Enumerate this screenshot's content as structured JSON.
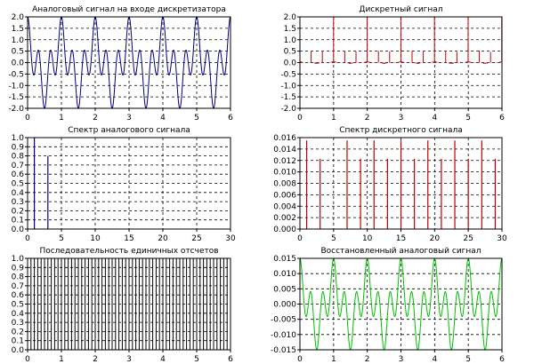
{
  "chart_data": [
    {
      "type": "line",
      "title": "Аналоговый сигнал на входе дискретизатора",
      "color": "#000080",
      "xlim": [
        0,
        6
      ],
      "ylim": [
        -2.0,
        2.0
      ],
      "xticks": [
        "0",
        "1",
        "2",
        "3",
        "4",
        "5",
        "6"
      ],
      "yticks": [
        "-2.0",
        "-1.5",
        "-1.0",
        "-0.5",
        "0.0",
        "0.5",
        "1.0",
        "1.5",
        "2.0"
      ],
      "series": [
        {
          "function": "cos(2*pi*t) + cos(2*pi*3*t)",
          "x_range": [
            0,
            6
          ]
        }
      ],
      "grid": true
    },
    {
      "type": "stem",
      "title": "Дискретный сигнал",
      "color": "#c00000",
      "xlim": [
        0,
        6
      ],
      "ylim": [
        -2.0,
        2.0
      ],
      "xticks": [
        "0",
        "1",
        "2",
        "3",
        "4",
        "5",
        "6"
      ],
      "yticks": [
        "-2.0",
        "-1.5",
        "-1.0",
        "-0.5",
        "0.0",
        "0.5",
        "1.0",
        "1.5",
        "2.0"
      ],
      "stems": {
        "x_start": 0,
        "x_step": 0.0333,
        "x_end": 6,
        "function": "cos(2*pi*t) + cos(2*pi*3*t)",
        "visible_every": 10
      },
      "grid": true
    },
    {
      "type": "bar",
      "title": "Спектр аналогового сигнала",
      "color": "#000080",
      "xlim": [
        0,
        30
      ],
      "ylim": [
        0.0,
        1.0
      ],
      "xticks": [
        "0",
        "5",
        "10",
        "15",
        "20",
        "25",
        "30"
      ],
      "yticks": [
        "0.0",
        "0.1",
        "0.2",
        "0.3",
        "0.4",
        "0.5",
        "0.6",
        "0.7",
        "0.8",
        "0.9",
        "1.0"
      ],
      "x": [
        1,
        3
      ],
      "values": [
        1.0,
        0.8
      ],
      "grid": true
    },
    {
      "type": "bar",
      "title": "Спектр дискретного сигнала",
      "color": "#c00000",
      "xlim": [
        0,
        30
      ],
      "ylim": [
        0.0,
        0.016
      ],
      "xticks": [
        "0",
        "5",
        "10",
        "15",
        "20",
        "25",
        "30"
      ],
      "yticks": [
        "0.000",
        "0.002",
        "0.004",
        "0.006",
        "0.008",
        "0.010",
        "0.012",
        "0.014",
        "0.016"
      ],
      "x": [
        1,
        3,
        7,
        9,
        11,
        13,
        15,
        17,
        19,
        21,
        23,
        25,
        27,
        29
      ],
      "values": [
        0.0155,
        0.0123,
        0.0155,
        0.0123,
        0.0155,
        0.0123,
        0.0155,
        0.0123,
        0.0155,
        0.0123,
        0.0155,
        0.0123,
        0.0155,
        0.0123
      ],
      "grid": true
    },
    {
      "type": "stem",
      "title": "Последовательность  единичных отсчетов",
      "color": "#000000",
      "xlim": [
        0,
        6
      ],
      "ylim": [
        0.0,
        1.0
      ],
      "xticks": [
        "0",
        "1",
        "2",
        "3",
        "4",
        "5",
        "6"
      ],
      "yticks": [
        "0.0",
        "0.1",
        "0.2",
        "0.3",
        "0.4",
        "0.5",
        "0.6",
        "0.7",
        "0.8",
        "0.9",
        "1.0"
      ],
      "stems": {
        "x_start": 0,
        "x_step": 0.1,
        "x_end": 6,
        "value": 1.0
      },
      "grid": true
    },
    {
      "type": "line",
      "title": "Восстановленный аналоговый сигнал",
      "color": "#00c000",
      "xlim": [
        0,
        6
      ],
      "ylim": [
        -0.015,
        0.015
      ],
      "xticks": [
        "0",
        "1",
        "2",
        "3",
        "4",
        "5",
        "6"
      ],
      "yticks": [
        "-0.015",
        "-0.010",
        "-0.005",
        "0.000",
        "0.005",
        "0.010",
        "0.015"
      ],
      "series": [
        {
          "function": "0.0075*(cos(2*pi*t) + cos(2*pi*3*t))",
          "x_range": [
            0,
            6
          ]
        }
      ],
      "grid": true
    }
  ]
}
